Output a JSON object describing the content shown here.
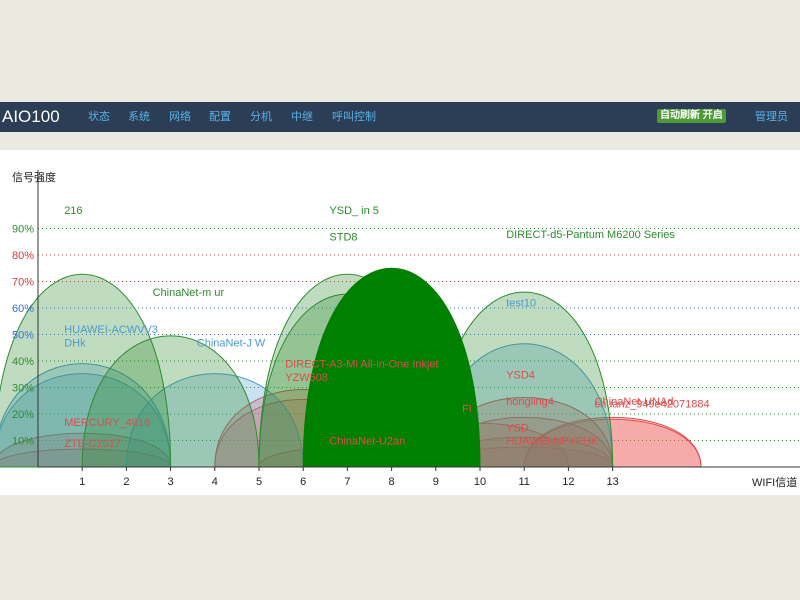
{
  "header": {
    "brand": "AIO100",
    "nav": [
      "状态",
      "系统",
      "网络",
      "配置",
      "分机",
      "中继",
      "呼叫控制"
    ],
    "auto_refresh": "自动刷新 开启",
    "admin": "管理员"
  },
  "chart_data": {
    "type": "area",
    "ylabel": "信号强度",
    "xlabel": "WIFI信道",
    "x_ticks": [
      1,
      2,
      3,
      4,
      5,
      6,
      7,
      8,
      9,
      10,
      11,
      12,
      13
    ],
    "y_ticks": [
      "10%",
      "20%",
      "30%",
      "40%",
      "50%",
      "60%",
      "70%",
      "80%",
      "90%"
    ],
    "ylim": [
      0,
      100
    ],
    "xlim": [
      -1,
      16
    ],
    "grid": true,
    "colors": {
      "green": "#2e8b2e",
      "green_fill": "rgba(46,139,46,0.30)",
      "blue": "#4c9ad0",
      "blue_fill": "rgba(76,154,208,0.30)",
      "red": "#e04b4b",
      "red_fill": "rgba(240,90,90,0.30)",
      "solid": "#008000"
    },
    "networks": [
      {
        "name": "216",
        "channel": 1,
        "signal": 97,
        "color": "green"
      },
      {
        "name": "ChinaNet-m   ur",
        "channel": 3,
        "signal": 66,
        "color": "green"
      },
      {
        "name": "YSD_   in   5",
        "channel": 7,
        "signal": 97,
        "color": "green"
      },
      {
        "name": "STD8",
        "channel": 7,
        "signal": 87,
        "color": "green"
      },
      {
        "name": "",
        "channel": 8,
        "signal": 100,
        "color": "solid"
      },
      {
        "name": "DIRECT-d5-Pantum M6200 Series",
        "channel": 11,
        "signal": 88,
        "color": "green"
      },
      {
        "name": "test10",
        "channel": 11,
        "signal": 62,
        "color": "blue"
      },
      {
        "name": "HUAWEI-ACWVV3",
        "channel": 1,
        "signal": 52,
        "color": "blue"
      },
      {
        "name": "DHk   ",
        "channel": 1,
        "signal": 47,
        "color": "blue"
      },
      {
        "name": "ChinaNet-J   W",
        "channel": 4,
        "signal": 47,
        "color": "blue"
      },
      {
        "name": "MERCURY_4016",
        "channel": 1,
        "signal": 17,
        "color": "red"
      },
      {
        "name": "ZTE-C2017",
        "channel": 1,
        "signal": 9,
        "color": "red"
      },
      {
        "name": "DIRECT-A3-Mi All-in-One Inkjet",
        "channel": 6,
        "signal": 39,
        "color": "red"
      },
      {
        "name": "YZW508",
        "channel": 6,
        "signal": 34,
        "color": "red"
      },
      {
        "name": "ChinaNet-U2an",
        "channel": 7,
        "signal": 10,
        "color": "red"
      },
      {
        "name": "YSD4",
        "channel": 11,
        "signal": 35,
        "color": "red"
      },
      {
        "name": "hongling4",
        "channel": 11,
        "signal": 25,
        "color": "red"
      },
      {
        "name": "FI",
        "channel": 10,
        "signal": 22,
        "color": "red"
      },
      {
        "name": "YSD",
        "channel": 11,
        "signal": 15,
        "color": "red"
      },
      {
        "name": "HUAWEI-NPYFHK",
        "channel": 11,
        "signal": 10,
        "color": "red"
      },
      {
        "name": "ChinaNet-UNAd",
        "channel": 13,
        "signal": 25,
        "color": "red"
      },
      {
        "name": "chuanz_949e42071884",
        "channel": 13,
        "signal": 24,
        "color": "red"
      }
    ]
  }
}
